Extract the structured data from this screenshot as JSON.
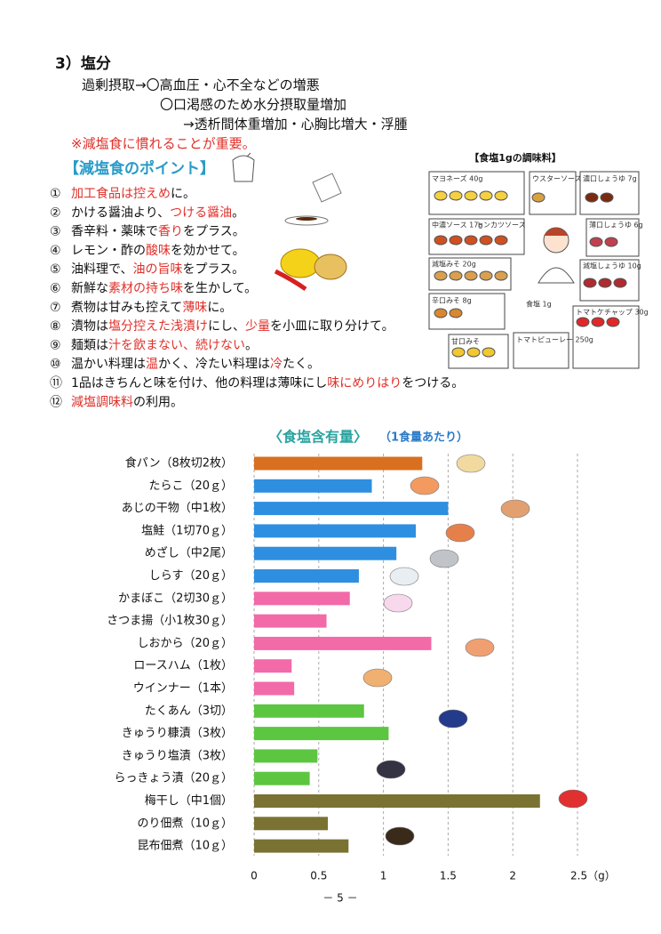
{
  "section": {
    "heading": "3）塩分",
    "lines": [
      "過剰摂取→〇高血圧・心不全などの増悪",
      "〇口渇感のため水分摂取量増加",
      "→透析間体重増加・心胸比増大・浮腫"
    ],
    "note": "※減塩食に慣れることが重要。"
  },
  "points": {
    "title": "【減塩食のポイント】",
    "items": [
      {
        "num": "①",
        "parts": [
          {
            "t": "加工食品は控えめ",
            "red": true
          },
          {
            "t": "に。"
          }
        ]
      },
      {
        "num": "②",
        "parts": [
          {
            "t": "かける醤油より、"
          },
          {
            "t": "つける醤油",
            "red": true
          },
          {
            "t": "。"
          }
        ]
      },
      {
        "num": "③",
        "parts": [
          {
            "t": "香辛料・薬味で"
          },
          {
            "t": "香り",
            "red": true
          },
          {
            "t": "をプラス。"
          }
        ]
      },
      {
        "num": "④",
        "parts": [
          {
            "t": "レモン・酢の"
          },
          {
            "t": "酸味",
            "red": true
          },
          {
            "t": "を効かせて。"
          }
        ]
      },
      {
        "num": "⑤",
        "parts": [
          {
            "t": "油料理で、"
          },
          {
            "t": "油の旨味",
            "red": true
          },
          {
            "t": "をプラス。"
          }
        ]
      },
      {
        "num": "⑥",
        "parts": [
          {
            "t": "新鮮な"
          },
          {
            "t": "素材の持ち味",
            "red": true
          },
          {
            "t": "を生かして。"
          }
        ]
      },
      {
        "num": "⑦",
        "parts": [
          {
            "t": "煮物は甘みも控えて"
          },
          {
            "t": "薄味",
            "red": true
          },
          {
            "t": "に。"
          }
        ]
      },
      {
        "num": "⑧",
        "parts": [
          {
            "t": "漬物は"
          },
          {
            "t": "塩分控えた浅漬け",
            "red": true
          },
          {
            "t": "にし、"
          },
          {
            "t": "少量",
            "red": true
          },
          {
            "t": "を小皿に取り分けて。"
          }
        ]
      },
      {
        "num": "⑨",
        "parts": [
          {
            "t": "麺類は"
          },
          {
            "t": "汁を飲まない、続けない",
            "red": true
          },
          {
            "t": "。"
          }
        ]
      },
      {
        "num": "⑩",
        "parts": [
          {
            "t": "温かい料理は"
          },
          {
            "t": "温",
            "red": true
          },
          {
            "t": "かく、冷たい料理は"
          },
          {
            "t": "冷",
            "red": true
          },
          {
            "t": "たく。"
          }
        ]
      },
      {
        "num": "⑪",
        "parts": [
          {
            "t": "1品はきちんと味を付け、他の料理は薄味にし"
          },
          {
            "t": "味にめりはり",
            "red": true
          },
          {
            "t": "をつける。"
          }
        ]
      },
      {
        "num": "⑫",
        "parts": [
          {
            "t": "減塩調味料",
            "red": true
          },
          {
            "t": "の利用。"
          }
        ]
      }
    ]
  },
  "illustration": {
    "labels": [
      "【食塩1gの調味料】",
      "マヨネーズ 40g",
      "ウスターソース",
      "濃口しょうゆ 7g",
      "中濃ソース 17g",
      "トンカツソース",
      "薄口しょうゆ 6g",
      "減塩みそ 20g",
      "減塩しょうゆ 10g",
      "辛口みそ 8g",
      "食塩 1g",
      "トマトケチャップ 30g",
      "甘口みそ",
      "トマトピューレー 250g"
    ]
  },
  "chart_data": {
    "type": "hbar",
    "title": "〈食塩含有量〉",
    "subtitle": "（1食量あたり）",
    "categories": [
      "食パン（8枚切2枚）",
      "たらこ（20ｇ）",
      "あじの干物（中1枚）",
      "塩鮭（1切70ｇ）",
      "めざし（中2尾）",
      "しらす（20ｇ）",
      "かまぼこ（2切30ｇ）",
      "さつま揚（小1枚30ｇ）",
      "しおから（20ｇ）",
      "ロースハム（1枚）",
      "ウインナー（1本）",
      "たくあん（3切）",
      "きゅうり糠漬（3枚）",
      "きゅうり塩漬（3枚）",
      "らっきょう漬（20ｇ）",
      "梅干し（中1個）",
      "のり佃煮（10ｇ）",
      "昆布佃煮（10ｇ）"
    ],
    "values": [
      1.3,
      0.91,
      1.5,
      1.25,
      1.1,
      0.81,
      0.74,
      0.56,
      1.37,
      0.29,
      0.31,
      0.85,
      1.04,
      0.49,
      0.43,
      2.21,
      0.57,
      0.73
    ],
    "colors": [
      "#d8701f",
      "#2e8fe0",
      "#2e8fe0",
      "#2e8fe0",
      "#2e8fe0",
      "#2e8fe0",
      "#f26aa8",
      "#f26aa8",
      "#f26aa8",
      "#f26aa8",
      "#f26aa8",
      "#5cc640",
      "#5cc640",
      "#5cc640",
      "#5cc640",
      "#7a7232",
      "#7a7232",
      "#7a7232"
    ],
    "xlim": [
      0,
      2.5
    ],
    "xticks": [
      0,
      0.5,
      1,
      1.5,
      2,
      {
        "value": 2.5,
        "label": "2.5（g）"
      }
    ],
    "grid": true
  },
  "page_number": "－ 5 －"
}
